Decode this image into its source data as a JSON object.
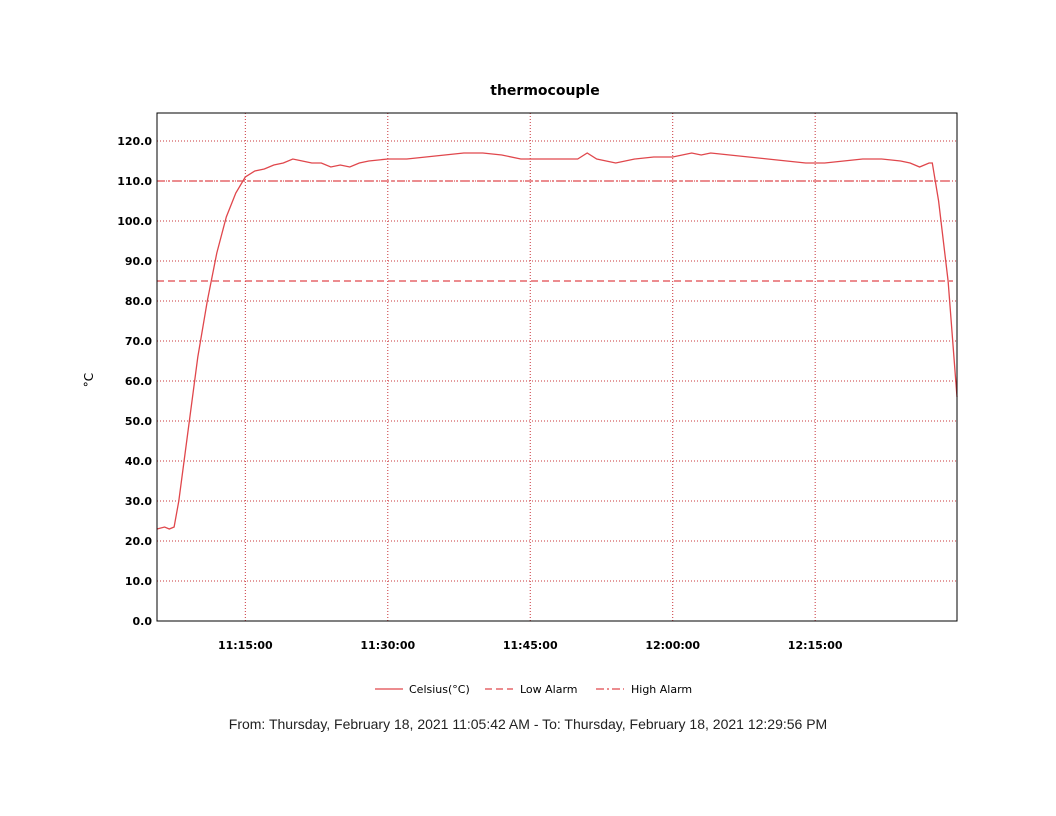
{
  "chart_data": {
    "type": "line",
    "title": "thermocouple",
    "ylabel": "°C",
    "xlabel": "",
    "ylim": [
      0,
      127
    ],
    "yticks": [
      0,
      10,
      20,
      30,
      40,
      50,
      60,
      70,
      80,
      90,
      100,
      110,
      120
    ],
    "ytick_labels": [
      "0.0",
      "10.0",
      "20.0",
      "30.0",
      "40.0",
      "50.0",
      "60.0",
      "70.0",
      "80.0",
      "90.0",
      "100.0",
      "110.0",
      "120.0"
    ],
    "xlim": [
      "11:05:42",
      "12:29:56"
    ],
    "xticks": [
      "11:15:00",
      "11:30:00",
      "11:45:00",
      "12:00:00",
      "12:15:00"
    ],
    "grid": true,
    "legend_position": "bottom-center",
    "colors": {
      "series": "#e0474c",
      "grid": "#c8343a"
    },
    "series": [
      {
        "name": "Celsius(°C)",
        "style": "solid",
        "x": [
          "11:05:42",
          "11:06:30",
          "11:07:00",
          "11:07:30",
          "11:08:00",
          "11:09:00",
          "11:10:00",
          "11:11:00",
          "11:12:00",
          "11:13:00",
          "11:14:00",
          "11:15:00",
          "11:16:00",
          "11:17:00",
          "11:18:00",
          "11:19:00",
          "11:20:00",
          "11:21:00",
          "11:22:00",
          "11:23:00",
          "11:24:00",
          "11:25:00",
          "11:26:00",
          "11:27:00",
          "11:28:00",
          "11:30:00",
          "11:32:00",
          "11:34:00",
          "11:36:00",
          "11:38:00",
          "11:40:00",
          "11:42:00",
          "11:44:00",
          "11:46:00",
          "11:48:00",
          "11:50:00",
          "11:51:00",
          "11:52:00",
          "11:54:00",
          "11:56:00",
          "11:58:00",
          "12:00:00",
          "12:02:00",
          "12:03:00",
          "12:04:00",
          "12:06:00",
          "12:08:00",
          "12:10:00",
          "12:12:00",
          "12:14:00",
          "12:16:00",
          "12:18:00",
          "12:20:00",
          "12:22:00",
          "12:24:00",
          "12:25:00",
          "12:26:00",
          "12:27:00",
          "12:27:20",
          "12:28:00",
          "12:29:00",
          "12:29:56"
        ],
        "values": [
          23,
          23.5,
          23,
          23.5,
          30,
          48,
          66,
          80,
          92,
          101,
          107,
          111,
          112.5,
          113,
          114,
          114.5,
          115.5,
          115,
          114.5,
          114.5,
          113.5,
          114,
          113.5,
          114.5,
          115,
          115.5,
          115.5,
          116,
          116.5,
          117,
          117,
          116.5,
          115.5,
          115.5,
          115.5,
          115.5,
          117,
          115.5,
          114.5,
          115.5,
          116,
          116,
          117,
          116.5,
          117,
          116.5,
          116,
          115.5,
          115,
          114.5,
          114.5,
          115,
          115.5,
          115.5,
          115,
          114.5,
          113.5,
          114.5,
          114.5,
          105,
          85,
          56
        ]
      },
      {
        "name": "Low Alarm",
        "style": "dashed",
        "values": [
          85
        ]
      },
      {
        "name": "High Alarm",
        "style": "dashdot",
        "values": [
          110
        ]
      }
    ]
  },
  "footer": "From: Thursday, February 18, 2021 11:05:42 AM  -  To: Thursday, February 18, 2021 12:29:56 PM"
}
